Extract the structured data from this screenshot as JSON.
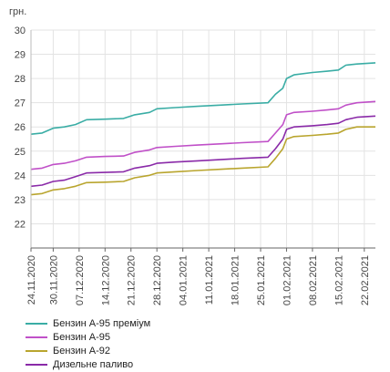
{
  "chart_data": {
    "type": "line",
    "unit_label": "грн.",
    "ylim": [
      21,
      30
    ],
    "yticks": [
      22,
      23,
      24,
      25,
      26,
      27,
      28,
      29,
      30
    ],
    "x_start": "2020-11-24",
    "x_end": "2021-02-25",
    "xtick_labels": [
      "24.11.2020",
      "30.11.2020",
      "07.12.2020",
      "14.12.2020",
      "21.12.2020",
      "28.12.2020",
      "04.01.2021",
      "11.01.2021",
      "18.01.2021",
      "25.01.2021",
      "01.02.2021",
      "08.02.2021",
      "15.02.2021",
      "22.02.2021"
    ],
    "grid": true,
    "legend_position": "bottom-left",
    "series": [
      {
        "name": "Бензин А-95 преміум",
        "color": "#3aada5",
        "points": [
          [
            "2020-11-24",
            25.7
          ],
          [
            "2020-11-27",
            25.75
          ],
          [
            "2020-11-30",
            25.95
          ],
          [
            "2020-12-03",
            26.0
          ],
          [
            "2020-12-06",
            26.1
          ],
          [
            "2020-12-09",
            26.3
          ],
          [
            "2020-12-14",
            26.32
          ],
          [
            "2020-12-19",
            26.35
          ],
          [
            "2020-12-22",
            26.5
          ],
          [
            "2020-12-26",
            26.6
          ],
          [
            "2020-12-28",
            26.75
          ],
          [
            "2021-01-02",
            26.8
          ],
          [
            "2021-01-08",
            26.85
          ],
          [
            "2021-01-14",
            26.9
          ],
          [
            "2021-01-20",
            26.95
          ],
          [
            "2021-01-27",
            27.0
          ],
          [
            "2021-01-29",
            27.35
          ],
          [
            "2021-01-31",
            27.6
          ],
          [
            "2021-02-01",
            28.0
          ],
          [
            "2021-02-03",
            28.15
          ],
          [
            "2021-02-08",
            28.25
          ],
          [
            "2021-02-12",
            28.3
          ],
          [
            "2021-02-15",
            28.35
          ],
          [
            "2021-02-17",
            28.55
          ],
          [
            "2021-02-20",
            28.6
          ],
          [
            "2021-02-25",
            28.65
          ]
        ]
      },
      {
        "name": "Бензин А-95",
        "color": "#c050c8",
        "points": [
          [
            "2020-11-24",
            24.25
          ],
          [
            "2020-11-27",
            24.3
          ],
          [
            "2020-11-30",
            24.45
          ],
          [
            "2020-12-03",
            24.5
          ],
          [
            "2020-12-06",
            24.6
          ],
          [
            "2020-12-09",
            24.75
          ],
          [
            "2020-12-14",
            24.78
          ],
          [
            "2020-12-19",
            24.8
          ],
          [
            "2020-12-22",
            24.95
          ],
          [
            "2020-12-26",
            25.05
          ],
          [
            "2020-12-28",
            25.15
          ],
          [
            "2021-01-02",
            25.2
          ],
          [
            "2021-01-08",
            25.25
          ],
          [
            "2021-01-14",
            25.3
          ],
          [
            "2021-01-20",
            25.35
          ],
          [
            "2021-01-27",
            25.4
          ],
          [
            "2021-01-29",
            25.75
          ],
          [
            "2021-01-31",
            26.1
          ],
          [
            "2021-02-01",
            26.5
          ],
          [
            "2021-02-03",
            26.6
          ],
          [
            "2021-02-08",
            26.65
          ],
          [
            "2021-02-12",
            26.7
          ],
          [
            "2021-02-15",
            26.75
          ],
          [
            "2021-02-17",
            26.9
          ],
          [
            "2021-02-20",
            27.0
          ],
          [
            "2021-02-25",
            27.05
          ]
        ]
      },
      {
        "name": "Бензин А-92",
        "color": "#b9a52e",
        "points": [
          [
            "2020-11-24",
            23.2
          ],
          [
            "2020-11-27",
            23.25
          ],
          [
            "2020-11-30",
            23.4
          ],
          [
            "2020-12-03",
            23.45
          ],
          [
            "2020-12-06",
            23.55
          ],
          [
            "2020-12-09",
            23.7
          ],
          [
            "2020-12-14",
            23.72
          ],
          [
            "2020-12-19",
            23.75
          ],
          [
            "2020-12-22",
            23.9
          ],
          [
            "2020-12-26",
            24.0
          ],
          [
            "2020-12-28",
            24.1
          ],
          [
            "2021-01-02",
            24.15
          ],
          [
            "2021-01-08",
            24.2
          ],
          [
            "2021-01-14",
            24.25
          ],
          [
            "2021-01-20",
            24.3
          ],
          [
            "2021-01-27",
            24.35
          ],
          [
            "2021-01-29",
            24.7
          ],
          [
            "2021-01-31",
            25.1
          ],
          [
            "2021-02-01",
            25.5
          ],
          [
            "2021-02-03",
            25.6
          ],
          [
            "2021-02-08",
            25.65
          ],
          [
            "2021-02-12",
            25.7
          ],
          [
            "2021-02-15",
            25.75
          ],
          [
            "2021-02-17",
            25.9
          ],
          [
            "2021-02-20",
            26.0
          ],
          [
            "2021-02-25",
            26.0
          ]
        ]
      },
      {
        "name": "Дизельне паливо",
        "color": "#8a2aa8",
        "points": [
          [
            "2020-11-24",
            23.55
          ],
          [
            "2020-11-27",
            23.6
          ],
          [
            "2020-11-30",
            23.75
          ],
          [
            "2020-12-03",
            23.8
          ],
          [
            "2020-12-06",
            23.95
          ],
          [
            "2020-12-09",
            24.1
          ],
          [
            "2020-12-14",
            24.12
          ],
          [
            "2020-12-19",
            24.15
          ],
          [
            "2020-12-22",
            24.3
          ],
          [
            "2020-12-26",
            24.4
          ],
          [
            "2020-12-28",
            24.5
          ],
          [
            "2021-01-02",
            24.55
          ],
          [
            "2021-01-08",
            24.6
          ],
          [
            "2021-01-14",
            24.65
          ],
          [
            "2021-01-20",
            24.7
          ],
          [
            "2021-01-27",
            24.75
          ],
          [
            "2021-01-29",
            25.1
          ],
          [
            "2021-01-31",
            25.5
          ],
          [
            "2021-02-01",
            25.9
          ],
          [
            "2021-02-03",
            26.0
          ],
          [
            "2021-02-08",
            26.05
          ],
          [
            "2021-02-12",
            26.1
          ],
          [
            "2021-02-15",
            26.15
          ],
          [
            "2021-02-17",
            26.3
          ],
          [
            "2021-02-20",
            26.4
          ],
          [
            "2021-02-25",
            26.45
          ]
        ]
      }
    ]
  }
}
